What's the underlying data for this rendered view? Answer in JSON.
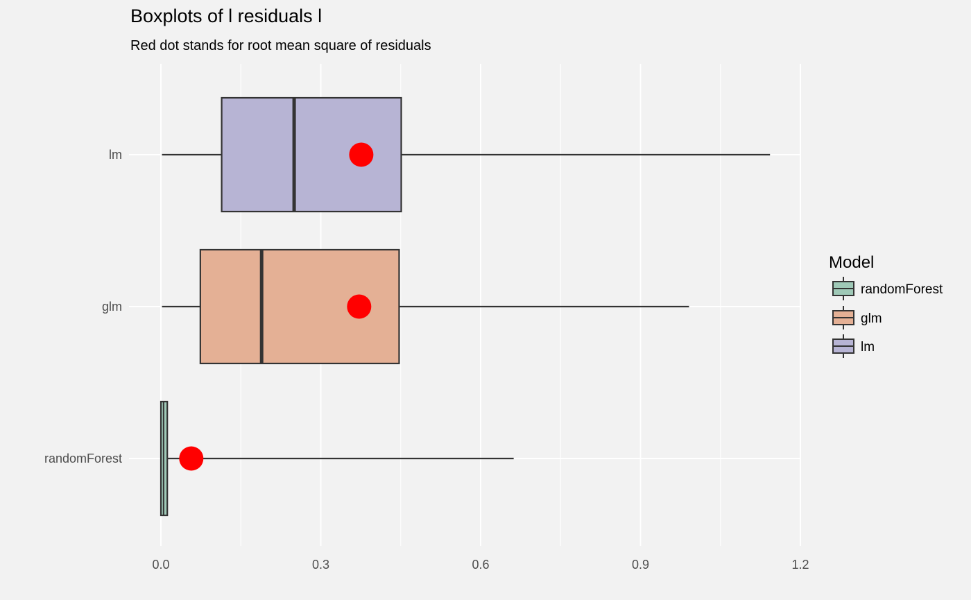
{
  "chart_data": {
    "type": "boxplot",
    "title": "Boxplots of l residuals l",
    "subtitle": "Red dot stands for root mean square of residuals",
    "xlabel": "",
    "ylabel": "",
    "xlim": [
      0,
      1.2
    ],
    "x_ticks": [
      0.0,
      0.3,
      0.6,
      0.9,
      1.2
    ],
    "x_tick_labels": [
      "0.0",
      "0.3",
      "0.6",
      "0.9",
      "1.2"
    ],
    "grid": true,
    "orientation": "horizontal",
    "categories": [
      "randomForest",
      "glm",
      "lm"
    ],
    "series": [
      {
        "name": "randomForest",
        "color": "#9fc9b7",
        "whisker_low": 0.0,
        "q1": 0.0,
        "median": 0.005,
        "q3": 0.012,
        "whisker_high": 0.662,
        "rms": 0.057
      },
      {
        "name": "glm",
        "color": "#e4b095",
        "whisker_low": 0.002,
        "q1": 0.074,
        "median": 0.189,
        "q3": 0.447,
        "whisker_high": 0.991,
        "rms": 0.372
      },
      {
        "name": "lm",
        "color": "#b7b4d4",
        "whisker_low": 0.002,
        "q1": 0.114,
        "median": 0.25,
        "q3": 0.451,
        "whisker_high": 1.143,
        "rms": 0.376
      }
    ],
    "rms_color": "#ff0000",
    "legend": {
      "title": "Model",
      "position": "right",
      "items": [
        "randomForest",
        "glm",
        "lm"
      ]
    }
  }
}
